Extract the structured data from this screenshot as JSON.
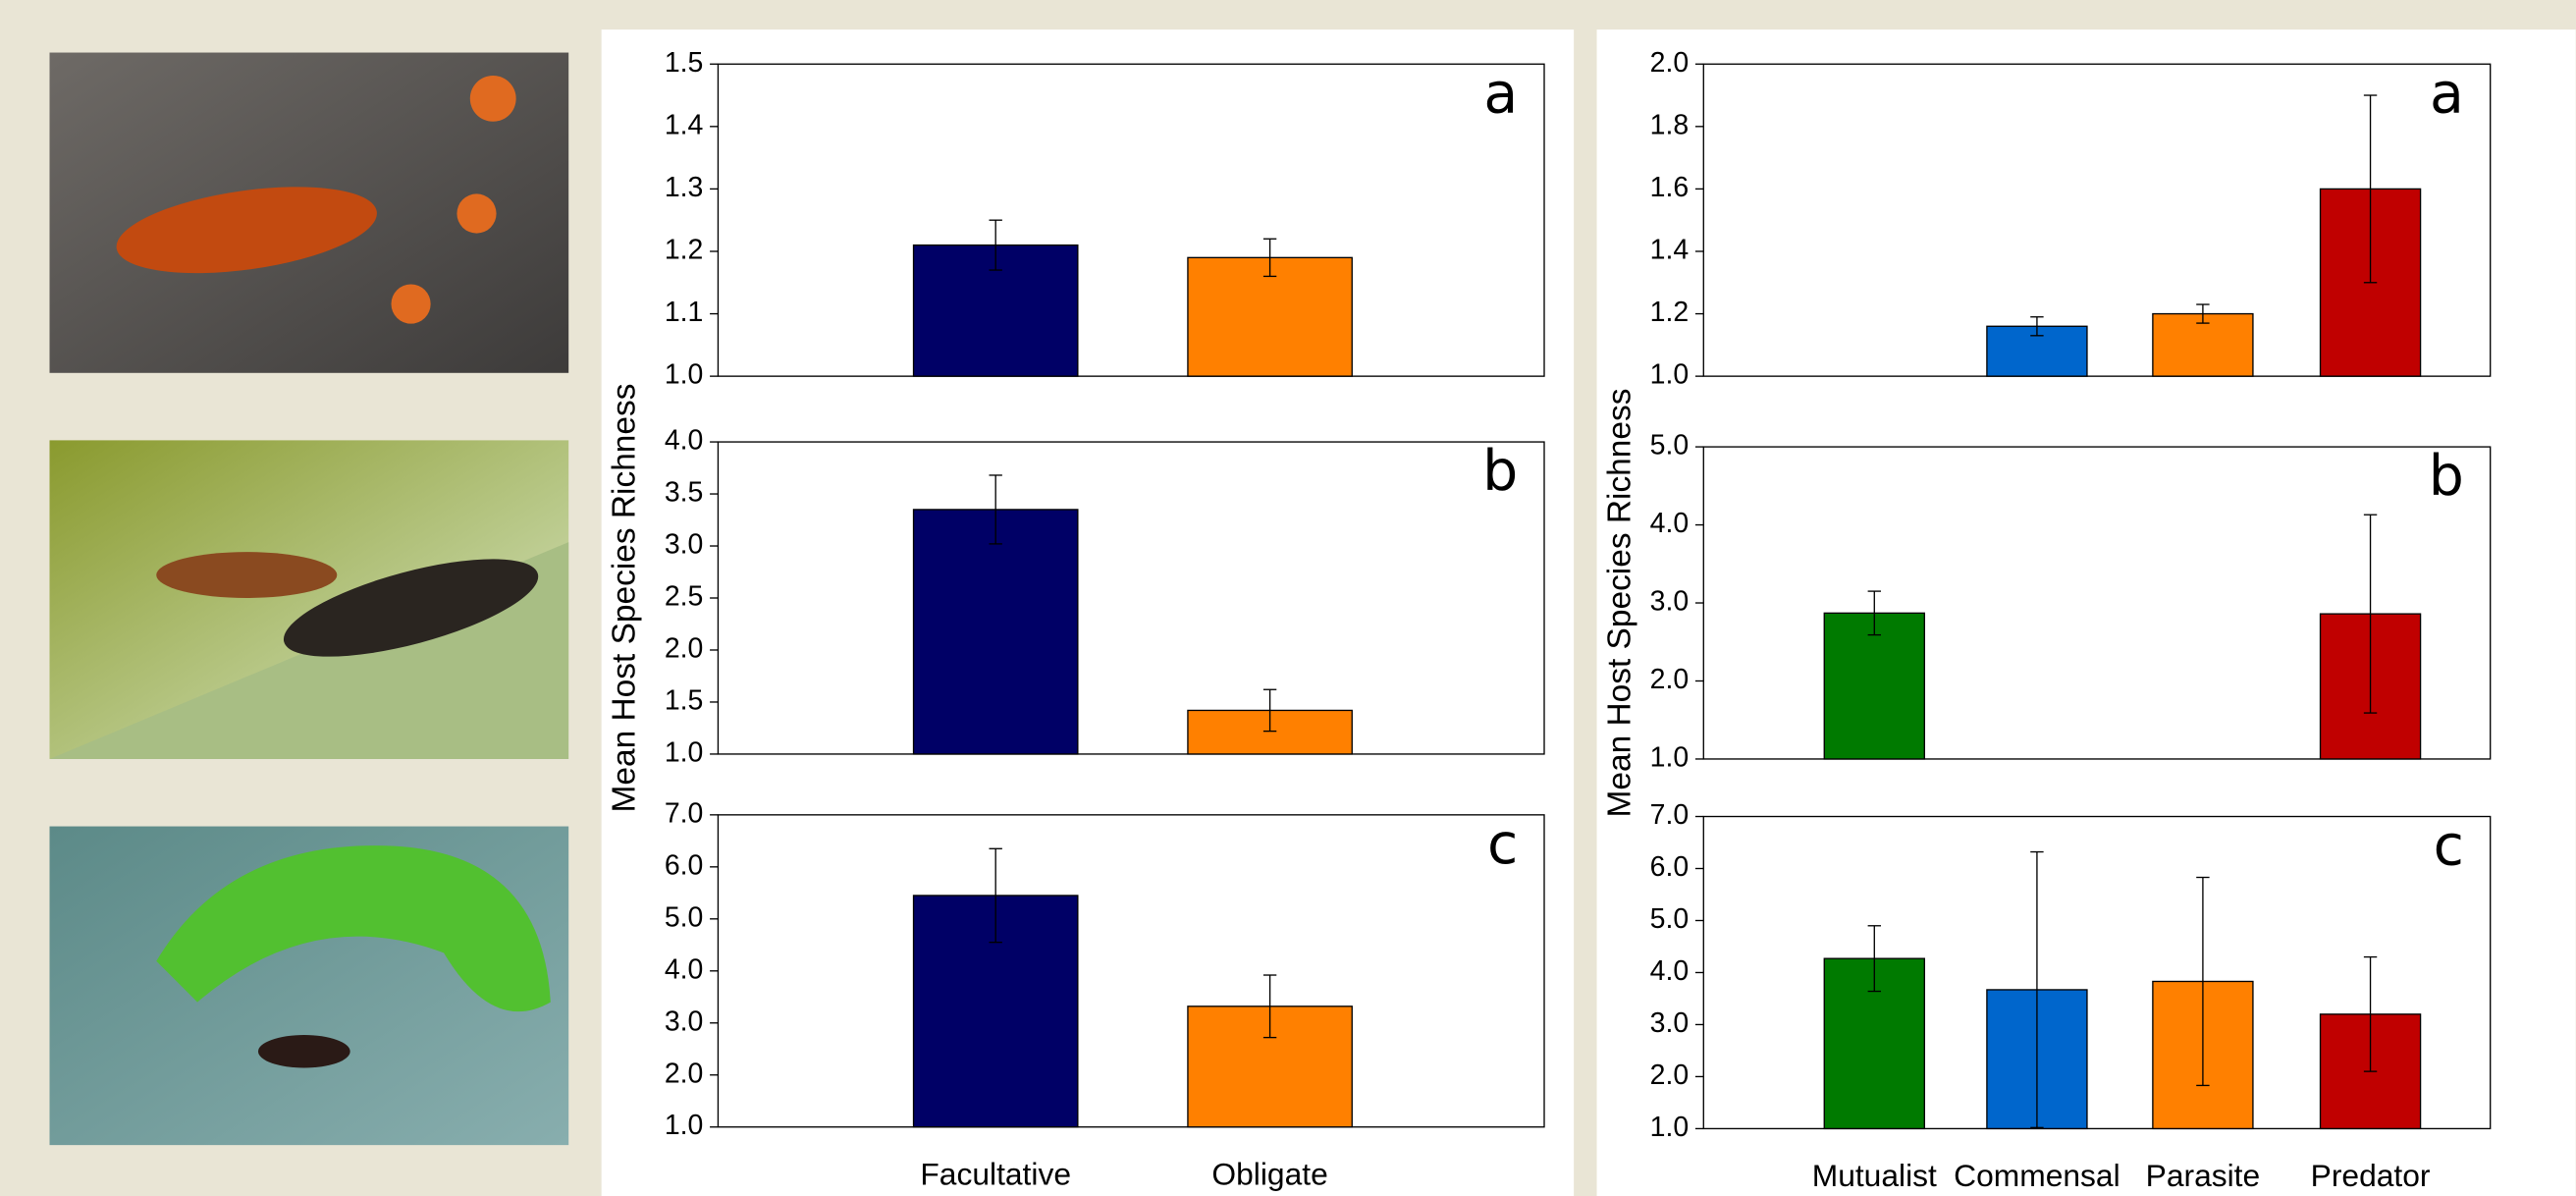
{
  "chart_data": [
    {
      "type": "bar",
      "label": "a",
      "categories": [
        null,
        null
      ],
      "values": [
        1.21,
        1.19
      ],
      "errors": [
        0.04,
        0.03
      ],
      "colors": [
        "#000066",
        "#ff8000"
      ],
      "ylim": [
        1.0,
        1.5
      ],
      "yticks": [
        {
          "value": 1,
          "label": "1.0"
        },
        1.1,
        1.2,
        1.3,
        1.4,
        1.5
      ]
    },
    {
      "type": "bar",
      "label": "b",
      "ylabel": "Mean Host Species Richness",
      "categories": [
        null,
        null
      ],
      "values": [
        3.35,
        1.42
      ],
      "errors": [
        0.33,
        0.2
      ],
      "colors": [
        "#000066",
        "#ff8000"
      ],
      "ylim": [
        1.0,
        4.0
      ],
      "yticks": [
        {
          "value": 1,
          "label": "1.0"
        },
        1.5,
        {
          "value": 2,
          "label": "2.0"
        },
        2.5,
        {
          "value": 3,
          "label": "3.0"
        },
        3.5,
        {
          "value": 4,
          "label": "4.0"
        }
      ]
    },
    {
      "type": "bar",
      "label": "c",
      "categories": [
        "Facultative",
        "Obligate"
      ],
      "values": [
        5.45,
        3.32
      ],
      "errors": [
        0.9,
        0.6
      ],
      "colors": [
        "#000066",
        "#ff8000"
      ],
      "ylim": [
        1.0,
        7.0
      ],
      "yticks": [
        {
          "value": 1,
          "label": "1.0"
        },
        {
          "value": 2,
          "label": "2.0"
        },
        {
          "value": 3,
          "label": "3.0"
        },
        {
          "value": 4,
          "label": "4.0"
        },
        {
          "value": 5,
          "label": "5.0"
        },
        {
          "value": 6,
          "label": "6.0"
        },
        {
          "value": 7,
          "label": "7.0"
        }
      ]
    },
    {
      "type": "bar",
      "label": "a",
      "categories": [
        null,
        null,
        null,
        null
      ],
      "values": [
        null,
        1.16,
        1.2,
        1.6
      ],
      "errors": [
        null,
        0.03,
        0.03,
        0.3
      ],
      "colors": [
        "#007a00",
        "#0066cc",
        "#ff8000",
        "#c00000"
      ],
      "ylim": [
        1.0,
        2.0
      ],
      "yticks": [
        {
          "value": 1,
          "label": "1.0"
        },
        1.2,
        1.4,
        1.6,
        1.8,
        {
          "value": 2,
          "label": "2.0"
        }
      ]
    },
    {
      "type": "bar",
      "label": "b",
      "ylabel": "Mean Host Species Richness",
      "categories": [
        null,
        null,
        null,
        null
      ],
      "values": [
        2.87,
        null,
        null,
        2.86
      ],
      "errors": [
        0.28,
        null,
        null,
        1.27
      ],
      "colors": [
        "#007a00",
        "#0066cc",
        "#ff8000",
        "#c00000"
      ],
      "ylim": [
        1.0,
        5.0
      ],
      "yticks": [
        {
          "value": 1,
          "label": "1.0"
        },
        {
          "value": 2,
          "label": "2.0"
        },
        {
          "value": 3,
          "label": "3.0"
        },
        {
          "value": 4,
          "label": "4.0"
        },
        {
          "value": 5,
          "label": "5.0"
        }
      ]
    },
    {
      "type": "bar",
      "label": "c",
      "categories": [
        "Mutualist",
        "Commensal",
        "Parasite",
        "Predator"
      ],
      "values": [
        4.27,
        3.67,
        3.83,
        3.2
      ],
      "errors": [
        0.63,
        2.65,
        2.0,
        1.1
      ],
      "colors": [
        "#007a00",
        "#0066cc",
        "#ff8000",
        "#c00000"
      ],
      "ylim": [
        1.0,
        7.0
      ],
      "yticks": [
        {
          "value": 1,
          "label": "1.0"
        },
        {
          "value": 2,
          "label": "2.0"
        },
        {
          "value": 3,
          "label": "3.0"
        },
        {
          "value": 4,
          "label": "4.0"
        },
        {
          "value": 5,
          "label": "5.0"
        },
        {
          "value": 6,
          "label": "6.0"
        },
        {
          "value": 7,
          "label": "7.0"
        }
      ]
    }
  ]
}
